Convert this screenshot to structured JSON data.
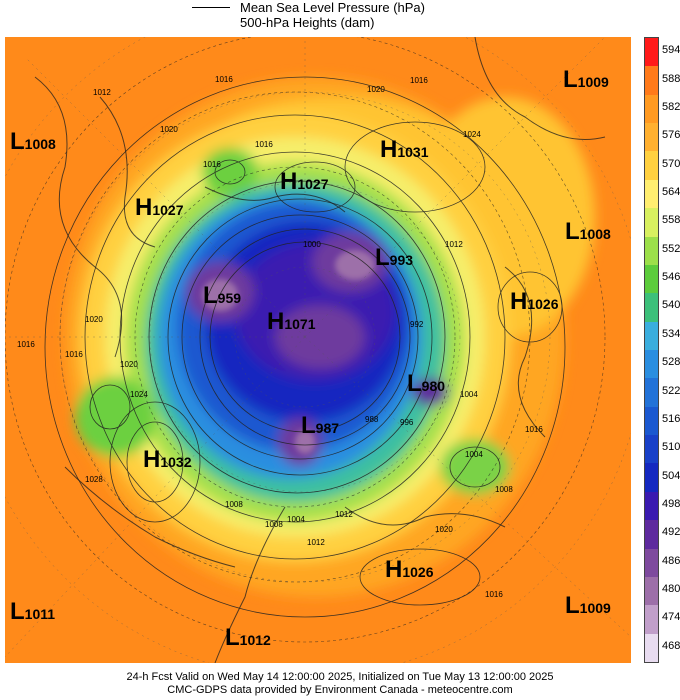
{
  "legend": {
    "pressure_label": "Mean Sea Level Pressure (hPa)",
    "height_label": "500-hPa Heights (dam)"
  },
  "colorbar": {
    "levels": [
      "594",
      "588",
      "582",
      "576",
      "570",
      "564",
      "558",
      "552",
      "546",
      "540",
      "534",
      "528",
      "522",
      "516",
      "510",
      "504",
      "498",
      "492",
      "486",
      "480",
      "474",
      "468"
    ],
    "colors": [
      "#ff1a1a",
      "#ff7a1a",
      "#ff9a22",
      "#ffb030",
      "#ffd040",
      "#ffee70",
      "#d8f060",
      "#9cdf4a",
      "#5ccc3c",
      "#3cc07a",
      "#3aaede",
      "#2a8ee0",
      "#2272d8",
      "#1a58d0",
      "#1840c8",
      "#1428c0",
      "#3a1ab0",
      "#5e2a9e",
      "#7e4a9e",
      "#9d6fa9",
      "#c19fca",
      "#e8dcf0"
    ]
  },
  "systems": [
    {
      "type": "L",
      "value": "1009"
    },
    {
      "type": "L",
      "value": "1008"
    },
    {
      "type": "H",
      "value": "1031"
    },
    {
      "type": "H",
      "value": "1027"
    },
    {
      "type": "H",
      "value": "1027"
    },
    {
      "type": "L",
      "value": "1008"
    },
    {
      "type": "L",
      "value": "993"
    },
    {
      "type": "L",
      "value": "959"
    },
    {
      "type": "H",
      "value": "1071"
    },
    {
      "type": "H",
      "value": "1026"
    },
    {
      "type": "L",
      "value": "980"
    },
    {
      "type": "L",
      "value": "987"
    },
    {
      "type": "H",
      "value": "1032"
    },
    {
      "type": "H",
      "value": "1026"
    },
    {
      "type": "L",
      "value": "1011"
    },
    {
      "type": "L",
      "value": "1012"
    },
    {
      "type": "L",
      "value": "1009"
    }
  ],
  "contour_labels": [
    "1012",
    "1016",
    "1020",
    "1016",
    "1020",
    "1024",
    "1016",
    "1020",
    "1012",
    "1016",
    "1020",
    "1024",
    "1028",
    "1016",
    "1008",
    "1016",
    "1016",
    "1020",
    "1016",
    "1012",
    "1008",
    "1004",
    "1000",
    "996",
    "992",
    "988",
    "1004",
    "1004",
    "1008",
    "1012"
  ],
  "footer": {
    "line1": "24-h Fcst Valid on Wed May 14 12:00:00 2025, Initialized on Tue May 13 12:00:00 2025",
    "line2": "CMC-GDPS data provided by Environment Canada - meteocentre.com"
  }
}
